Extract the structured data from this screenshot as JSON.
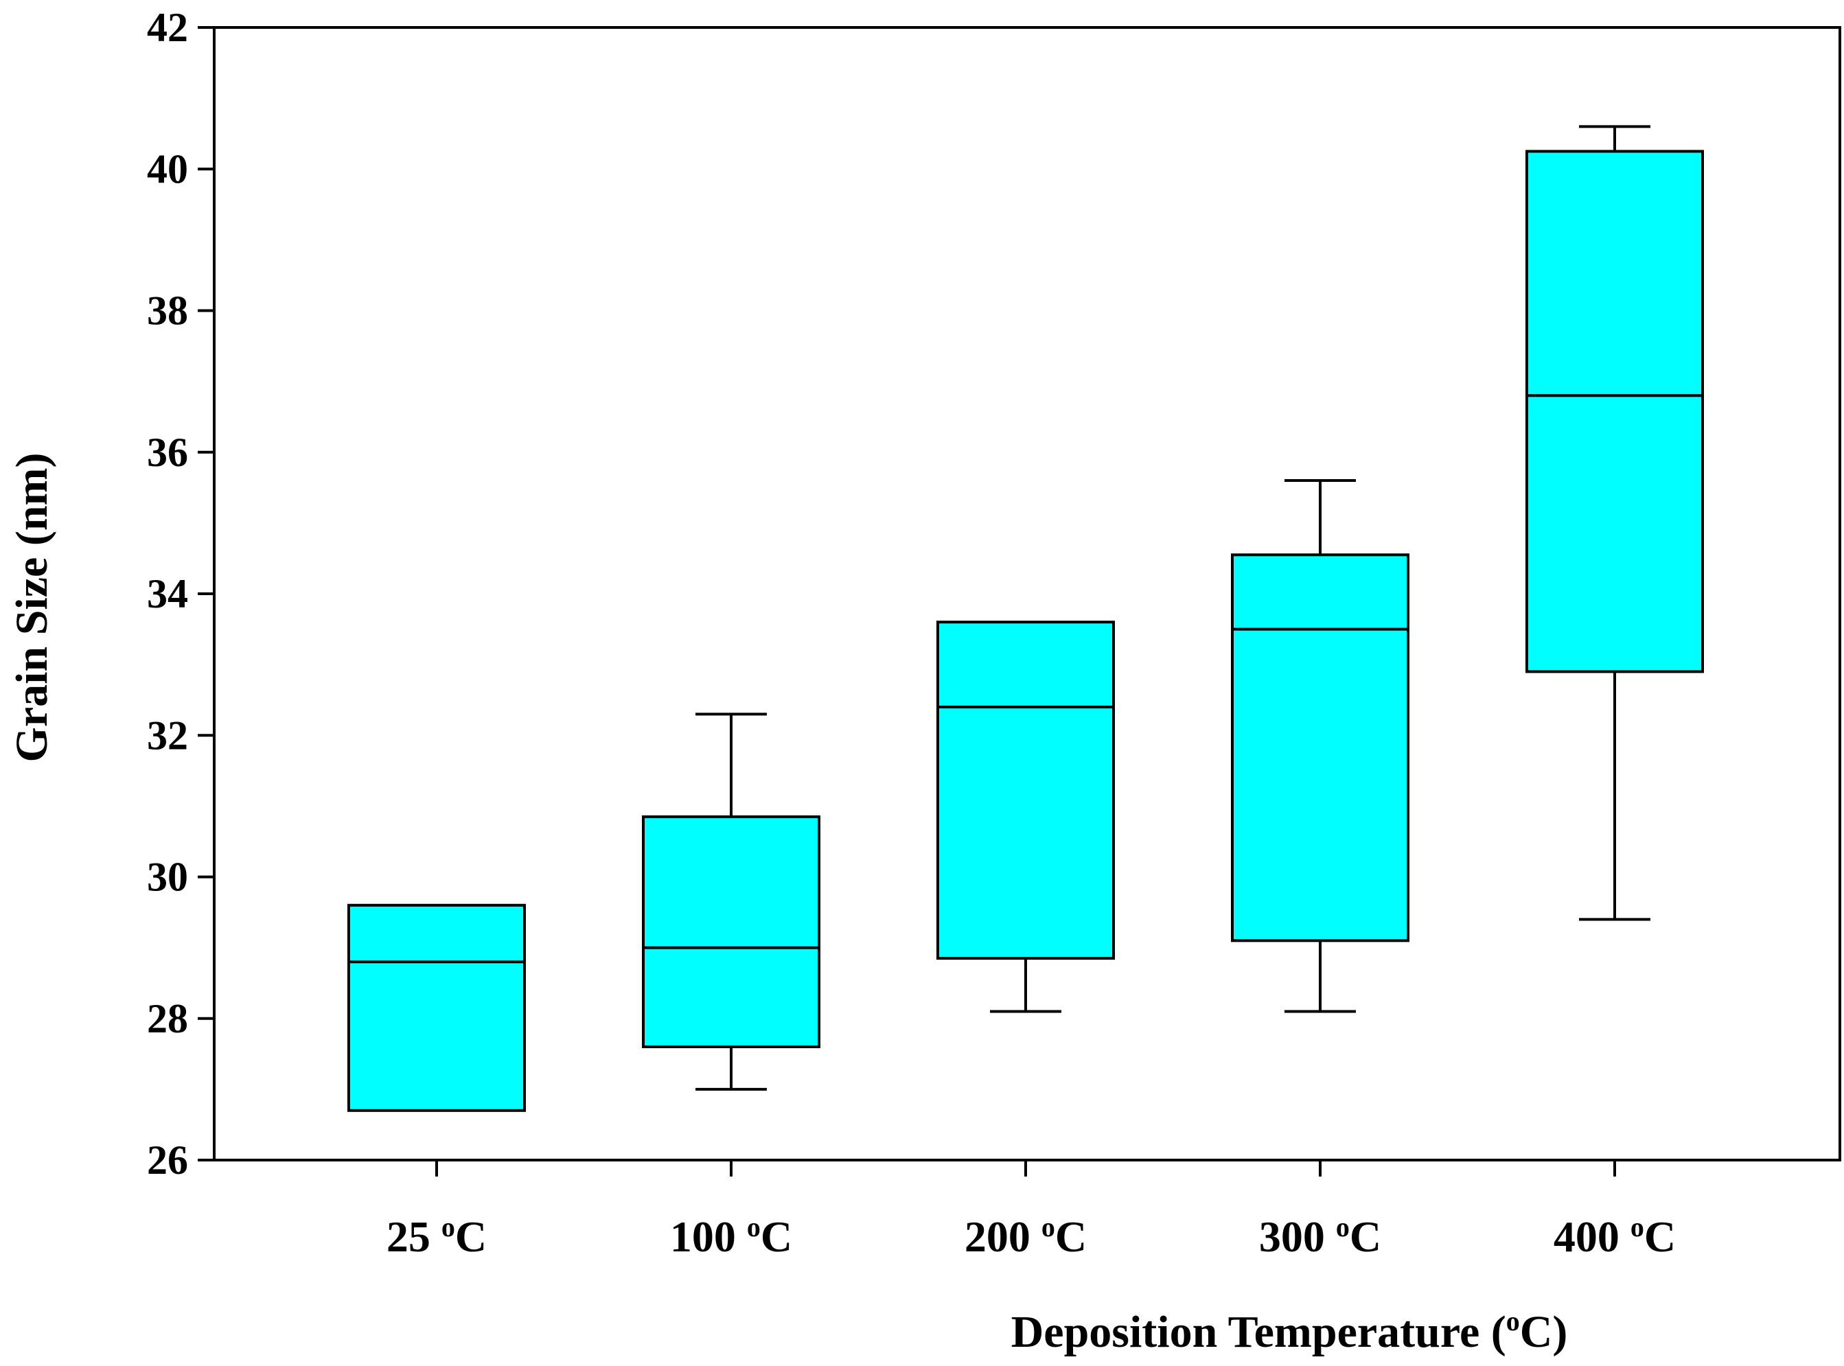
{
  "chart_data": {
    "type": "boxplot",
    "title": "",
    "xlabel": {
      "prefix": "Deposition Temperature  (",
      "sup": "o",
      "suffix": "C)"
    },
    "ylabel": "Grain Size  (nm)",
    "ylim": [
      26,
      42
    ],
    "yticks": [
      26,
      28,
      30,
      32,
      34,
      36,
      38,
      40,
      42
    ],
    "grid": false,
    "colors": {
      "box_fill": "#00ffff",
      "stroke": "#000000"
    },
    "categories": [
      {
        "value": "25",
        "sup": "o",
        "unit": "C"
      },
      {
        "value": "100",
        "sup": "o",
        "unit": "C"
      },
      {
        "value": "200",
        "sup": "o",
        "unit": "C"
      },
      {
        "value": "300",
        "sup": "o",
        "unit": "C"
      },
      {
        "value": "400",
        "sup": "o",
        "unit": "C"
      }
    ],
    "boxes": [
      {
        "whisker_low": 26.7,
        "q1": 26.7,
        "median": 28.8,
        "q3": 29.6,
        "whisker_high": 29.6
      },
      {
        "whisker_low": 27.0,
        "q1": 27.6,
        "median": 29.0,
        "q3": 30.85,
        "whisker_high": 32.3
      },
      {
        "whisker_low": 28.1,
        "q1": 28.85,
        "median": 32.4,
        "q3": 33.6,
        "whisker_high": 33.6
      },
      {
        "whisker_low": 28.1,
        "q1": 29.1,
        "median": 33.5,
        "q3": 34.55,
        "whisker_high": 35.6
      },
      {
        "whisker_low": 29.4,
        "q1": 32.9,
        "median": 36.8,
        "q3": 40.25,
        "whisker_high": 40.6
      }
    ]
  }
}
